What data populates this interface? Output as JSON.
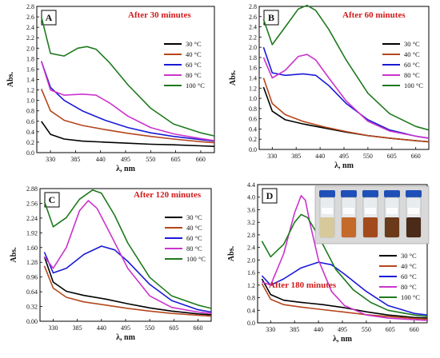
{
  "legend_labels": [
    "30 °C",
    "40 °C",
    "60 °C",
    "80 °C",
    "100 °C"
  ],
  "series_colors": [
    "#000000",
    "#b5461c",
    "#1a1ad6",
    "#cc33cc",
    "#1e7a1e"
  ],
  "photo_caption": "vials photo (inset)",
  "chart_data": [
    {
      "type": "line",
      "panel": "A",
      "title": "After 30 minutes",
      "xlabel": "λ, nm",
      "ylabel": "Abs.",
      "xlim": [
        300,
        690
      ],
      "ylim": [
        0.0,
        2.8
      ],
      "xticks": [
        330,
        385,
        440,
        495,
        550,
        605,
        660
      ],
      "yticks": [
        0.0,
        0.2,
        0.4,
        0.6,
        0.8,
        1.0,
        1.2,
        1.4,
        1.6,
        1.8,
        2.0,
        2.2,
        2.4,
        2.6,
        2.8
      ],
      "ytick_labels": [
        "0.0",
        "0.2",
        "0.4",
        "0.6",
        "0.8",
        "1.0",
        "1.2",
        "1.4",
        "1.6",
        "1.8",
        "2.0",
        "2.2",
        "2.4",
        "2.6",
        "2.8"
      ],
      "legend_position": "right",
      "series": [
        {
          "name": "30 °C",
          "x": [
            310,
            330,
            360,
            400,
            450,
            500,
            550,
            600,
            660,
            690
          ],
          "y": [
            0.6,
            0.35,
            0.26,
            0.22,
            0.2,
            0.18,
            0.16,
            0.15,
            0.13,
            0.12
          ]
        },
        {
          "name": "40 °C",
          "x": [
            310,
            330,
            360,
            400,
            450,
            500,
            550,
            600,
            660,
            690
          ],
          "y": [
            1.22,
            0.8,
            0.62,
            0.52,
            0.44,
            0.37,
            0.31,
            0.26,
            0.21,
            0.19
          ]
        },
        {
          "name": "60 °C",
          "x": [
            310,
            330,
            360,
            400,
            450,
            500,
            550,
            600,
            660,
            690
          ],
          "y": [
            1.75,
            1.25,
            1.0,
            0.8,
            0.62,
            0.48,
            0.38,
            0.31,
            0.25,
            0.22
          ]
        },
        {
          "name": "80 °C",
          "x": [
            310,
            330,
            360,
            400,
            430,
            460,
            500,
            550,
            600,
            660,
            690
          ],
          "y": [
            1.75,
            1.2,
            1.1,
            1.12,
            1.1,
            0.95,
            0.7,
            0.48,
            0.36,
            0.27,
            0.23
          ]
        },
        {
          "name": "100 °C",
          "x": [
            310,
            330,
            360,
            390,
            410,
            430,
            460,
            500,
            550,
            600,
            660,
            690
          ],
          "y": [
            2.6,
            1.9,
            1.85,
            2.0,
            2.03,
            1.98,
            1.72,
            1.3,
            0.85,
            0.55,
            0.38,
            0.32
          ]
        }
      ]
    },
    {
      "type": "line",
      "panel": "B",
      "title": "After 60 minutes",
      "xlabel": "λ, nm",
      "ylabel": "Abs.",
      "xlim": [
        300,
        690
      ],
      "ylim": [
        0.0,
        2.8
      ],
      "xticks": [
        330,
        385,
        440,
        495,
        550,
        605,
        660
      ],
      "yticks": [
        0.0,
        0.2,
        0.4,
        0.6,
        0.8,
        1.0,
        1.2,
        1.4,
        1.6,
        1.8,
        2.0,
        2.2,
        2.4,
        2.6,
        2.8
      ],
      "ytick_labels": [
        "0.0",
        "0.2",
        "0.4",
        "0.6",
        "0.8",
        "1.0",
        "1.2",
        "1.4",
        "1.6",
        "1.8",
        "2.0",
        "2.2",
        "2.4",
        "2.6",
        "2.8"
      ],
      "legend_position": "right",
      "series": [
        {
          "name": "30 °C",
          "x": [
            310,
            330,
            360,
            400,
            450,
            500,
            550,
            600,
            660,
            690
          ],
          "y": [
            1.22,
            0.75,
            0.58,
            0.5,
            0.42,
            0.34,
            0.27,
            0.22,
            0.17,
            0.15
          ]
        },
        {
          "name": "40 °C",
          "x": [
            310,
            330,
            360,
            400,
            450,
            500,
            550,
            600,
            660,
            690
          ],
          "y": [
            1.4,
            0.9,
            0.68,
            0.55,
            0.44,
            0.35,
            0.27,
            0.22,
            0.17,
            0.15
          ]
        },
        {
          "name": "60 °C",
          "x": [
            310,
            330,
            360,
            400,
            430,
            460,
            500,
            550,
            600,
            660,
            690
          ],
          "y": [
            2.0,
            1.5,
            1.45,
            1.48,
            1.45,
            1.25,
            0.9,
            0.58,
            0.38,
            0.26,
            0.22
          ]
        },
        {
          "name": "80 °C",
          "x": [
            310,
            330,
            360,
            390,
            410,
            430,
            460,
            500,
            550,
            600,
            660,
            690
          ],
          "y": [
            1.8,
            1.4,
            1.55,
            1.82,
            1.86,
            1.75,
            1.4,
            0.95,
            0.55,
            0.36,
            0.26,
            0.22
          ]
        },
        {
          "name": "100 °C",
          "x": [
            310,
            330,
            360,
            390,
            410,
            430,
            460,
            500,
            550,
            600,
            660,
            690
          ],
          "y": [
            2.55,
            2.05,
            2.4,
            2.75,
            2.82,
            2.72,
            2.35,
            1.75,
            1.1,
            0.7,
            0.45,
            0.38
          ]
        }
      ]
    },
    {
      "type": "line",
      "panel": "C",
      "title": "After 120 minutes",
      "xlabel": "λ, nm",
      "ylabel": "Abs.",
      "xlim": [
        300,
        690
      ],
      "ylim": [
        0.0,
        2.88
      ],
      "xticks": [
        330,
        385,
        440,
        495,
        550,
        605,
        660
      ],
      "yticks": [
        0.0,
        0.32,
        0.64,
        0.96,
        1.28,
        1.6,
        1.92,
        2.24,
        2.56,
        2.88
      ],
      "ytick_labels": [
        "0.00",
        "0.32",
        "0.64",
        "0.96",
        "1.28",
        "1.60",
        "1.92",
        "2.24",
        "2.56",
        "2.88"
      ],
      "legend_position": "right",
      "series": [
        {
          "name": "30 °C",
          "x": [
            310,
            330,
            360,
            400,
            450,
            500,
            550,
            600,
            660,
            690
          ],
          "y": [
            1.4,
            0.85,
            0.65,
            0.56,
            0.48,
            0.38,
            0.29,
            0.22,
            0.16,
            0.14
          ]
        },
        {
          "name": "40 °C",
          "x": [
            310,
            330,
            360,
            400,
            450,
            500,
            550,
            600,
            660,
            690
          ],
          "y": [
            1.2,
            0.72,
            0.52,
            0.42,
            0.35,
            0.28,
            0.22,
            0.17,
            0.13,
            0.11
          ]
        },
        {
          "name": "60 °C",
          "x": [
            310,
            330,
            360,
            400,
            440,
            470,
            500,
            550,
            600,
            660,
            690
          ],
          "y": [
            1.5,
            1.05,
            1.15,
            1.45,
            1.63,
            1.55,
            1.3,
            0.8,
            0.45,
            0.25,
            0.2
          ]
        },
        {
          "name": "80 °C",
          "x": [
            310,
            330,
            360,
            390,
            410,
            430,
            460,
            500,
            550,
            600,
            660,
            690
          ],
          "y": [
            1.4,
            1.15,
            1.6,
            2.4,
            2.62,
            2.45,
            1.9,
            1.15,
            0.55,
            0.3,
            0.2,
            0.17
          ]
        },
        {
          "name": "100 °C",
          "x": [
            310,
            330,
            360,
            390,
            420,
            440,
            470,
            500,
            550,
            600,
            660,
            690
          ],
          "y": [
            2.6,
            2.05,
            2.25,
            2.65,
            2.85,
            2.78,
            2.3,
            1.7,
            0.95,
            0.55,
            0.35,
            0.28
          ]
        }
      ]
    },
    {
      "type": "line",
      "panel": "D",
      "title": "After 180 minutes",
      "xlabel": "λ, nm",
      "ylabel": "Abs.",
      "xlim": [
        300,
        690
      ],
      "ylim": [
        0.0,
        4.4
      ],
      "xticks": [
        330,
        385,
        440,
        495,
        550,
        605,
        660
      ],
      "yticks": [
        0.0,
        0.4,
        0.8,
        1.2,
        1.6,
        2.0,
        2.4,
        2.8,
        3.2,
        3.6,
        4.0,
        4.4
      ],
      "ytick_labels": [
        "0.0",
        "0.4",
        "0.8",
        "1.2",
        "1.6",
        "2.0",
        "2.4",
        "2.8",
        "3.2",
        "3.6",
        "4.0",
        "4.4"
      ],
      "legend_position": "right",
      "series": [
        {
          "name": "30 °C",
          "x": [
            310,
            330,
            360,
            400,
            450,
            500,
            550,
            600,
            660,
            690
          ],
          "y": [
            1.4,
            0.9,
            0.72,
            0.65,
            0.58,
            0.48,
            0.35,
            0.25,
            0.17,
            0.15
          ]
        },
        {
          "name": "40 °C",
          "x": [
            310,
            330,
            360,
            400,
            450,
            500,
            550,
            600,
            660,
            690
          ],
          "y": [
            1.25,
            0.75,
            0.58,
            0.5,
            0.42,
            0.34,
            0.26,
            0.2,
            0.14,
            0.12
          ]
        },
        {
          "name": "60 °C",
          "x": [
            310,
            330,
            360,
            400,
            440,
            470,
            500,
            550,
            600,
            660,
            690
          ],
          "y": [
            1.5,
            1.2,
            1.4,
            1.75,
            1.93,
            1.85,
            1.55,
            1.0,
            0.55,
            0.3,
            0.25
          ]
        },
        {
          "name": "80 °C",
          "x": [
            310,
            330,
            360,
            385,
            400,
            410,
            420,
            440,
            470,
            500,
            550,
            600,
            660,
            690
          ],
          "y": [
            1.3,
            1.2,
            2.2,
            3.5,
            4.05,
            3.9,
            3.2,
            2.0,
            1.0,
            0.55,
            0.25,
            0.15,
            0.1,
            0.08
          ]
        },
        {
          "name": "100 °C",
          "x": [
            310,
            330,
            360,
            385,
            400,
            415,
            430,
            450,
            480,
            520,
            560,
            600,
            660,
            690
          ],
          "y": [
            2.6,
            2.1,
            2.5,
            3.2,
            3.45,
            3.35,
            3.0,
            2.5,
            1.7,
            1.05,
            0.65,
            0.4,
            0.25,
            0.2
          ]
        }
      ]
    }
  ]
}
